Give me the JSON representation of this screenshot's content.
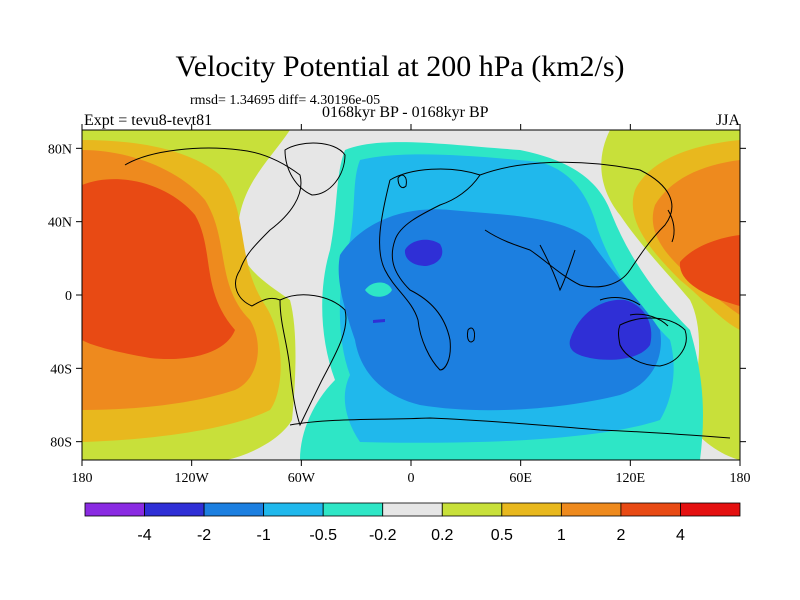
{
  "title": "Velocity Potential at 200 hPa (km2/s)",
  "stats": "rmsd= 1.34695 diff= 4.30196e-05",
  "expt": "Expt = tevu8-tevt81",
  "period": "0168kyr BP - 0168kyr BP",
  "season": "JJA",
  "lon_ticks": [
    "180",
    "120W",
    "60W",
    "0",
    "60E",
    "120E",
    "180"
  ],
  "lat_ticks": [
    "80N",
    "40N",
    "0",
    "40S",
    "80S"
  ],
  "colorbar": {
    "labels": [
      "-4",
      "-2",
      "-1",
      "-0.5",
      "-0.2",
      "0.2",
      "0.5",
      "1",
      "2",
      "4"
    ],
    "colors": [
      "#8a2be2",
      "#2f2fd6",
      "#1c7fe0",
      "#20b8ec",
      "#2ee6c6",
      "#e6e6e6",
      "#c8e03a",
      "#e8b81e",
      "#ee8a1e",
      "#e84a14",
      "#e41010"
    ]
  },
  "level_colors": {
    "lt_-2": "#2f2fd6",
    "-2_-1": "#1c7fe0",
    "-1_-0.5": "#20b8ec",
    "-0.5_-0.2": "#2ee6c6",
    "-0.2_0.2": "#e6e6e6",
    "0.2_0.5": "#c8e03a",
    "0.5_1": "#e8b81e",
    "1_2": "#ee8a1e",
    "2_4": "#e84a14"
  }
}
